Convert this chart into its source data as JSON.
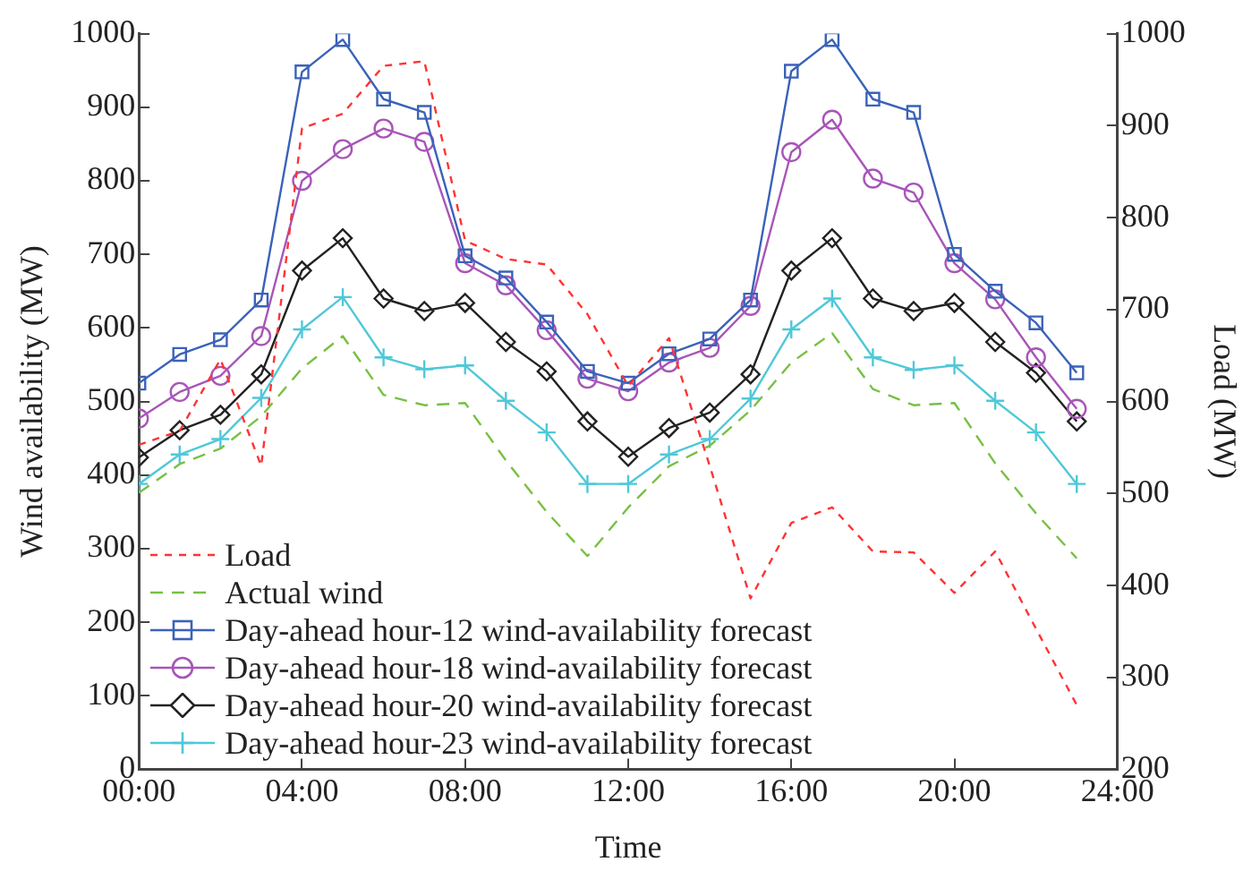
{
  "chart_data": {
    "type": "line",
    "xlabel": "Time",
    "ylabel": "Wind availability (MW)",
    "y2label": "Load (MW)",
    "x": [
      0,
      1,
      2,
      3,
      4,
      5,
      6,
      7,
      8,
      9,
      10,
      11,
      12,
      13,
      14,
      15,
      16,
      17,
      18,
      19,
      20,
      21,
      22,
      23
    ],
    "xlim": [
      0,
      24
    ],
    "xticks": [
      {
        "value": 0,
        "label": "00:00"
      },
      {
        "value": 4,
        "label": "04:00"
      },
      {
        "value": 8,
        "label": "08:00"
      },
      {
        "value": 12,
        "label": "12:00"
      },
      {
        "value": 16,
        "label": "16:00"
      },
      {
        "value": 20,
        "label": "20:00"
      },
      {
        "value": 24,
        "label": "24:00"
      }
    ],
    "ylim": [
      0,
      1000
    ],
    "yticks": [
      0,
      100,
      200,
      300,
      400,
      500,
      600,
      700,
      800,
      900,
      1000
    ],
    "y2lim": [
      200,
      1000
    ],
    "y2ticks": [
      200,
      300,
      400,
      500,
      600,
      700,
      800,
      900,
      1000
    ],
    "grid": false,
    "legend": "bottom left",
    "series": [
      {
        "name": "Load",
        "color": "#ff3333",
        "axis": "y2",
        "line_style": "dotted",
        "marker": "none",
        "values": [
          553,
          568,
          646,
          530,
          897,
          913,
          965,
          970,
          775,
          755,
          749,
          695,
          617,
          669,
          530,
          386,
          468,
          485,
          437,
          436,
          392,
          437,
          353,
          270
        ]
      },
      {
        "name": "Actual wind",
        "color": "#77c043",
        "line_style": "dashed",
        "marker": "none",
        "values": [
          376,
          415,
          436,
          480,
          545,
          589,
          509,
          495,
          498,
          420,
          350,
          290,
          356,
          412,
          440,
          488,
          553,
          593,
          517,
          495,
          498,
          416,
          348,
          287
        ]
      },
      {
        "name": "Day-ahead hour-12 wind-availability forecast",
        "color": "#3a62b8",
        "line_style": "solid",
        "marker": "square",
        "values": [
          525,
          564,
          584,
          638,
          948,
          992,
          911,
          893,
          698,
          668,
          608,
          541,
          525,
          565,
          585,
          638,
          949,
          992,
          911,
          893,
          700,
          650,
          607,
          539
        ]
      },
      {
        "name": "Day-ahead hour-18 wind-availability forecast",
        "color": "#a855b8",
        "line_style": "solid",
        "marker": "circle",
        "values": [
          477,
          513,
          535,
          589,
          800,
          843,
          871,
          853,
          688,
          658,
          597,
          531,
          514,
          553,
          573,
          630,
          839,
          883,
          803,
          784,
          688,
          639,
          560,
          490
        ]
      },
      {
        "name": "Day-ahead hour-20 wind-availability forecast",
        "color": "#222222",
        "line_style": "solid",
        "marker": "diamond",
        "values": [
          424,
          461,
          482,
          537,
          678,
          722,
          640,
          623,
          634,
          581,
          541,
          473,
          425,
          464,
          485,
          537,
          678,
          722,
          640,
          623,
          634,
          581,
          539,
          473
        ]
      },
      {
        "name": "Day-ahead hour-23 wind-availability forecast",
        "color": "#4fc8d8",
        "line_style": "solid",
        "marker": "cross",
        "values": [
          388,
          428,
          449,
          505,
          598,
          642,
          560,
          544,
          549,
          501,
          458,
          388,
          388,
          428,
          449,
          504,
          598,
          640,
          560,
          543,
          549,
          501,
          458,
          388
        ]
      }
    ]
  }
}
